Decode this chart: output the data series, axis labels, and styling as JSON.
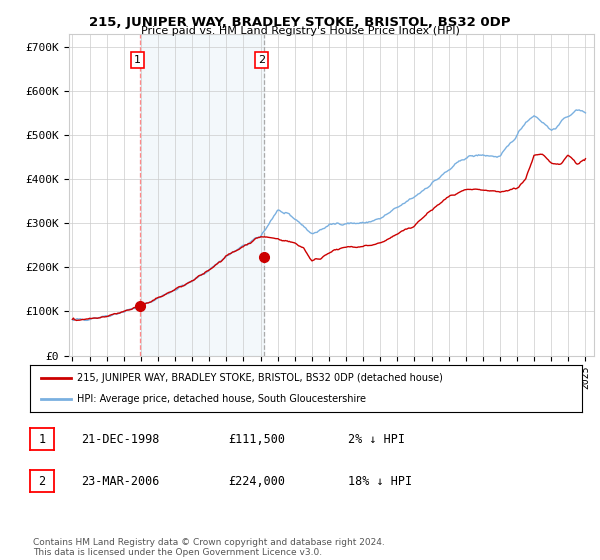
{
  "title": "215, JUNIPER WAY, BRADLEY STOKE, BRISTOL, BS32 0DP",
  "subtitle": "Price paid vs. HM Land Registry's House Price Index (HPI)",
  "ylabel_ticks": [
    "£0",
    "£100K",
    "£200K",
    "£300K",
    "£400K",
    "£500K",
    "£600K",
    "£700K"
  ],
  "ytick_values": [
    0,
    100000,
    200000,
    300000,
    400000,
    500000,
    600000,
    700000
  ],
  "ylim": [
    0,
    730000
  ],
  "xlim_start": 1994.8,
  "xlim_end": 2025.5,
  "hpi_color": "#7ab0e0",
  "price_color": "#cc0000",
  "shade_color": "#d8e8f5",
  "sale1_x": 1998.97,
  "sale1_y": 111500,
  "sale2_x": 2006.22,
  "sale2_y": 224000,
  "legend_label1": "215, JUNIPER WAY, BRADLEY STOKE, BRISTOL, BS32 0DP (detached house)",
  "legend_label2": "HPI: Average price, detached house, South Gloucestershire",
  "table_row1": [
    "1",
    "21-DEC-1998",
    "£111,500",
    "2% ↓ HPI"
  ],
  "table_row2": [
    "2",
    "23-MAR-2006",
    "£224,000",
    "18% ↓ HPI"
  ],
  "footnote": "Contains HM Land Registry data © Crown copyright and database right 2024.\nThis data is licensed under the Open Government Licence v3.0.",
  "bg_color": "#ffffff",
  "grid_color": "#cccccc",
  "xtick_years": [
    1995,
    1996,
    1997,
    1998,
    1999,
    2000,
    2001,
    2002,
    2003,
    2004,
    2005,
    2006,
    2007,
    2008,
    2009,
    2010,
    2011,
    2012,
    2013,
    2014,
    2015,
    2016,
    2017,
    2018,
    2019,
    2020,
    2021,
    2022,
    2023,
    2024,
    2025
  ]
}
